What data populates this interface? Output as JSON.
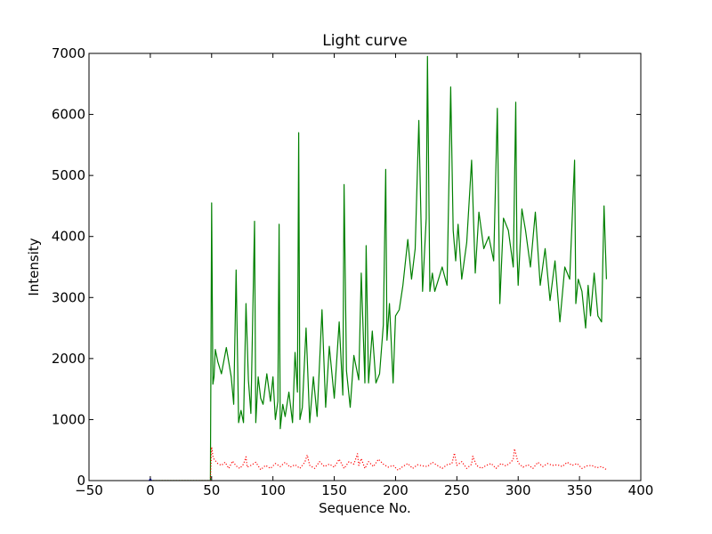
{
  "chart_data": {
    "type": "line",
    "title": "Light curve",
    "xlabel": "Sequence No.",
    "ylabel": "Intensity",
    "xlim": [
      -50,
      400
    ],
    "ylim": [
      0,
      7000
    ],
    "xticks": [
      -50,
      0,
      50,
      100,
      150,
      200,
      250,
      300,
      350,
      400
    ],
    "yticks": [
      0,
      1000,
      2000,
      3000,
      4000,
      5000,
      6000,
      7000
    ],
    "xtick_labels": [
      "−50",
      "0",
      "50",
      "100",
      "150",
      "200",
      "250",
      "300",
      "350",
      "400"
    ],
    "ytick_labels": [
      "0",
      "1000",
      "2000",
      "3000",
      "4000",
      "5000",
      "6000",
      "7000"
    ],
    "grid": false,
    "series": [
      {
        "color": "#008000",
        "style": "solid",
        "x": [
          0,
          49,
          50,
          51,
          52,
          53,
          55,
          58,
          62,
          66,
          68,
          70,
          72,
          74,
          76,
          78,
          80,
          82,
          85,
          86,
          88,
          90,
          92,
          95,
          98,
          100,
          102,
          104,
          105,
          106,
          108,
          110,
          113,
          116,
          118,
          120,
          121,
          122,
          124,
          127,
          130,
          133,
          136,
          140,
          143,
          146,
          150,
          154,
          157,
          158,
          160,
          163,
          166,
          170,
          172,
          175,
          176,
          178,
          181,
          184,
          187,
          190,
          192,
          193,
          195,
          198,
          200,
          203,
          206,
          210,
          213,
          216,
          219,
          222,
          225,
          226,
          228,
          230,
          232,
          235,
          238,
          242,
          245,
          247,
          249,
          251,
          254,
          258,
          262,
          265,
          268,
          272,
          276,
          280,
          283,
          285,
          288,
          292,
          296,
          298,
          299,
          300,
          303,
          306,
          310,
          314,
          318,
          322,
          326,
          330,
          334,
          338,
          342,
          346,
          347,
          349,
          352,
          355,
          357,
          359,
          362,
          365,
          368,
          370,
          372
        ],
        "y": [
          0,
          0,
          4550,
          1580,
          1700,
          2150,
          1950,
          1750,
          2180,
          1700,
          1250,
          3450,
          950,
          1150,
          950,
          2900,
          1650,
          1100,
          4250,
          950,
          1700,
          1350,
          1250,
          1750,
          1300,
          1700,
          1000,
          1300,
          4200,
          850,
          1250,
          1050,
          1450,
          950,
          2100,
          1450,
          5700,
          1000,
          1200,
          2500,
          950,
          1700,
          1050,
          2800,
          1200,
          2200,
          1350,
          2600,
          1400,
          4850,
          1800,
          1200,
          2050,
          1650,
          3400,
          1600,
          3850,
          1600,
          2450,
          1600,
          1750,
          2550,
          5100,
          2300,
          2900,
          1600,
          2700,
          2800,
          3200,
          3950,
          3300,
          3800,
          5900,
          3100,
          4300,
          6950,
          3100,
          3400,
          3100,
          3300,
          3500,
          3200,
          6450,
          4100,
          3600,
          4200,
          3300,
          3900,
          5250,
          3400,
          4400,
          3800,
          4000,
          3600,
          6100,
          2900,
          4300,
          4100,
          3500,
          6200,
          3800,
          3200,
          4450,
          4100,
          3500,
          4400,
          3200,
          3800,
          2950,
          3600,
          2600,
          3500,
          3300,
          5250,
          2900,
          3300,
          3100,
          2500,
          3200,
          2700,
          3400,
          2700,
          2600,
          4500,
          3300
        ]
      },
      {
        "color": "#ff0000",
        "style": "dotted",
        "x": [
          0,
          49,
          50,
          51,
          52,
          55,
          58,
          61,
          64,
          67,
          70,
          73,
          76,
          78,
          79,
          82,
          86,
          90,
          94,
          98,
          102,
          106,
          110,
          114,
          118,
          122,
          126,
          128,
          130,
          134,
          138,
          142,
          146,
          150,
          154,
          158,
          162,
          166,
          169,
          170,
          172,
          175,
          178,
          182,
          186,
          190,
          194,
          198,
          202,
          206,
          210,
          214,
          218,
          222,
          226,
          230,
          234,
          238,
          242,
          246,
          248,
          250,
          254,
          258,
          262,
          263,
          266,
          270,
          274,
          278,
          282,
          286,
          290,
          294,
          296,
          297,
          300,
          304,
          308,
          312,
          316,
          320,
          324,
          328,
          332,
          336,
          340,
          344,
          348,
          352,
          356,
          360,
          364,
          368,
          372
        ],
        "y": [
          0,
          0,
          550,
          400,
          350,
          280,
          250,
          300,
          200,
          320,
          240,
          200,
          270,
          390,
          220,
          250,
          300,
          180,
          250,
          200,
          280,
          230,
          300,
          220,
          260,
          200,
          300,
          420,
          250,
          200,
          310,
          230,
          270,
          220,
          350,
          200,
          310,
          270,
          440,
          250,
          360,
          200,
          310,
          230,
          350,
          270,
          220,
          250,
          170,
          230,
          280,
          200,
          260,
          240,
          230,
          300,
          250,
          200,
          260,
          280,
          450,
          250,
          310,
          200,
          270,
          400,
          250,
          200,
          250,
          280,
          200,
          280,
          240,
          300,
          350,
          520,
          290,
          220,
          260,
          200,
          300,
          230,
          280,
          250,
          260,
          230,
          300,
          250,
          280,
          200,
          240,
          250,
          210,
          230,
          180
        ]
      },
      {
        "color": "#0000ff",
        "style": "solid",
        "x": [
          -1,
          0,
          1
        ],
        "y": [
          0,
          30,
          0
        ]
      }
    ]
  }
}
